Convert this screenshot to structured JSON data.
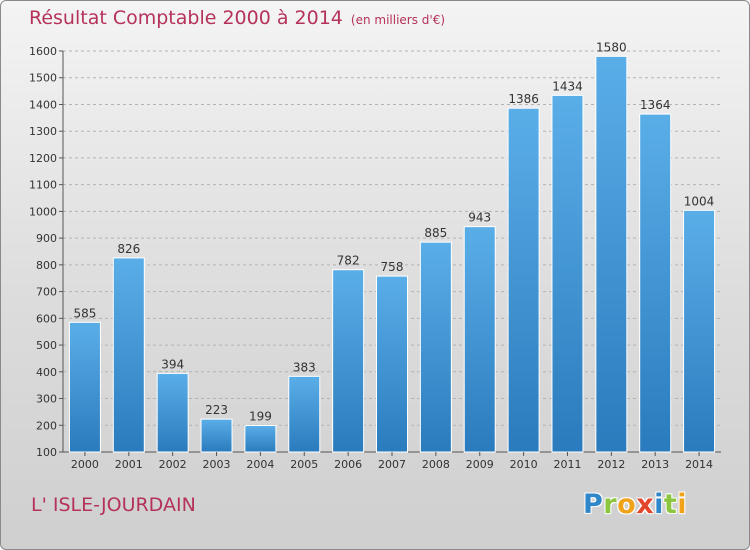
{
  "chart_data": {
    "type": "bar",
    "title": "Résultat Comptable 2000 à 2014",
    "subtitle": "(en milliers d'€)",
    "categories": [
      "2000",
      "2001",
      "2002",
      "2003",
      "2004",
      "2005",
      "2006",
      "2007",
      "2008",
      "2009",
      "2010",
      "2011",
      "2012",
      "2013",
      "2014"
    ],
    "values": [
      585,
      826,
      394,
      223,
      199,
      383,
      782,
      758,
      885,
      943,
      1386,
      1434,
      1580,
      1364,
      1004
    ],
    "ylim": [
      100,
      1600
    ],
    "yticks": [
      100,
      200,
      300,
      400,
      500,
      600,
      700,
      800,
      900,
      1000,
      1100,
      1200,
      1300,
      1400,
      1500,
      1600
    ],
    "grid": true,
    "bar_color": "#3d8fd2",
    "xlabel": "",
    "ylabel": ""
  },
  "location": "L' ISLE-JOURDAIN",
  "logo": {
    "p": "P",
    "r": "r",
    "o": "o",
    "x": "x",
    "i1": "i",
    "t": "t",
    "i2": "i"
  }
}
